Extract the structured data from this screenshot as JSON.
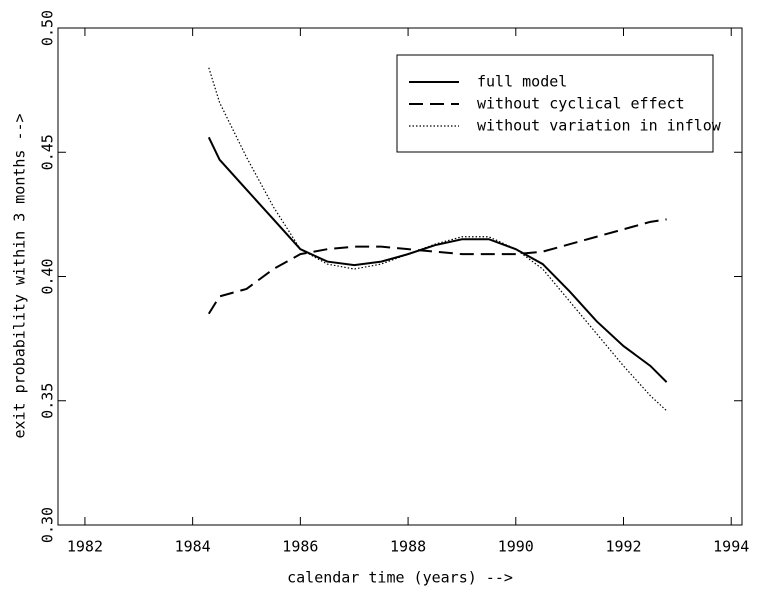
{
  "chart_data": {
    "type": "line",
    "xlabel": "calendar time (years) -->",
    "ylabel": "exit probability within 3 months -->",
    "x": [
      1984.3,
      1984.5,
      1985,
      1985.5,
      1986,
      1986.5,
      1987,
      1987.5,
      1988,
      1988.5,
      1989,
      1989.5,
      1990,
      1990.5,
      1991,
      1991.5,
      1992,
      1992.5,
      1992.8
    ],
    "series": [
      {
        "name": "full model",
        "color": "#000000",
        "dash": "solid",
        "values": [
          0.456,
          0.447,
          0.435,
          0.423,
          0.411,
          0.406,
          0.4046,
          0.406,
          0.409,
          0.4126,
          0.415,
          0.415,
          0.411,
          0.405,
          0.394,
          0.382,
          0.372,
          0.364,
          0.3575
        ]
      },
      {
        "name": "without cyclical effect",
        "color": "#000000",
        "dash": "dashed",
        "values": [
          0.385,
          0.392,
          0.395,
          0.403,
          0.409,
          0.411,
          0.412,
          0.412,
          0.411,
          0.41,
          0.409,
          0.409,
          0.409,
          0.41,
          0.413,
          0.416,
          0.419,
          0.422,
          0.423
        ]
      },
      {
        "name": "without variation in inflow",
        "color": "#000000",
        "dash": "dotted",
        "values": [
          0.484,
          0.47,
          0.448,
          0.428,
          0.411,
          0.405,
          0.403,
          0.405,
          0.409,
          0.413,
          0.416,
          0.416,
          0.411,
          0.403,
          0.39,
          0.377,
          0.364,
          0.352,
          0.346
        ]
      }
    ],
    "xlim": [
      1981.5,
      1994.2
    ],
    "xticks": [
      1982,
      1984,
      1986,
      1988,
      1990,
      1992,
      1994
    ],
    "ylim": [
      0.3,
      0.5
    ],
    "yticks": [
      {
        "value": 0.3,
        "label": "0.30"
      },
      0.35,
      {
        "value": 0.4,
        "label": "0.40"
      },
      0.45,
      {
        "value": 0.5,
        "label": "0.50"
      }
    ],
    "legend": "upper right"
  }
}
